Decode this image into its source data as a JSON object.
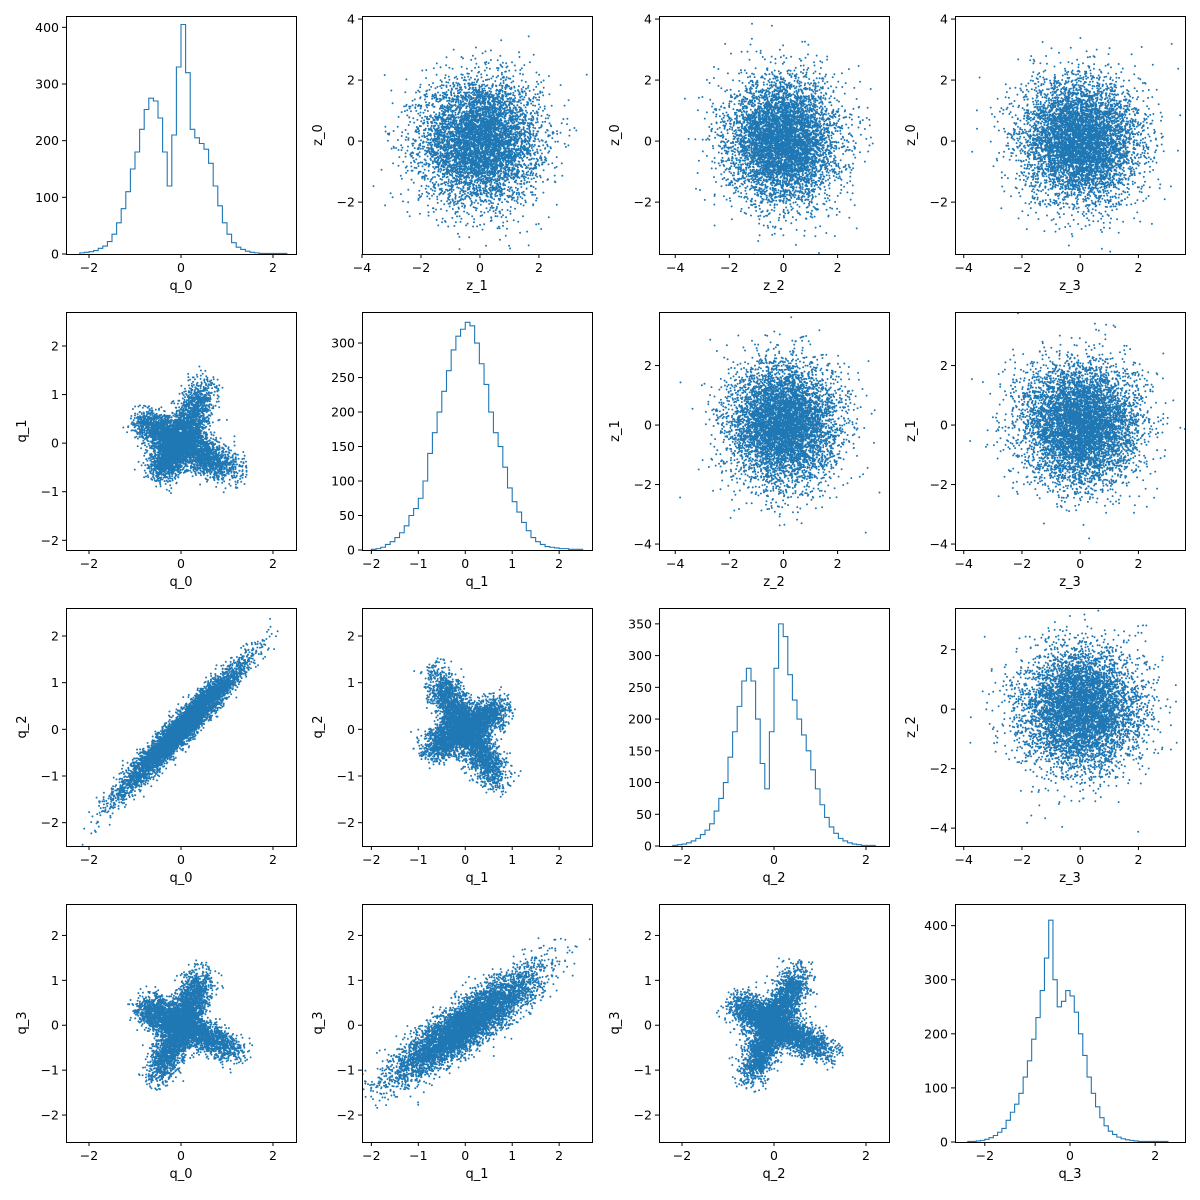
{
  "figure": {
    "rows": 4,
    "cols": 4,
    "color": "#1f77b4"
  },
  "chart_data": [
    {
      "type": "histogram",
      "row": 0,
      "col": 0,
      "xlabel": "q_0",
      "ylabel": "",
      "xlim": [
        -2.5,
        2.5
      ],
      "ylim": [
        0,
        420
      ],
      "xticks": [
        -2,
        0,
        2
      ],
      "yticks": [
        0,
        100,
        200,
        300,
        400
      ],
      "bins": {
        "start": -2.2,
        "width": 0.1
      },
      "counts": [
        2,
        3,
        4,
        6,
        10,
        14,
        22,
        35,
        55,
        80,
        110,
        150,
        180,
        220,
        255,
        275,
        270,
        240,
        180,
        120,
        210,
        330,
        405,
        320,
        220,
        205,
        195,
        185,
        160,
        120,
        85,
        55,
        35,
        20,
        12,
        8,
        5,
        3,
        2,
        1,
        1,
        1,
        1,
        1,
        1
      ]
    },
    {
      "type": "scatter",
      "row": 0,
      "col": 1,
      "xlabel": "z_1",
      "ylabel": "z_0",
      "xlim": [
        -4,
        3.8
      ],
      "ylim": [
        -3.7,
        4.1
      ],
      "xticks": [
        -4,
        -2,
        0,
        2
      ],
      "yticks": [
        -2,
        0,
        2,
        4
      ],
      "distribution": {
        "kind": "gaussian",
        "center": [
          0,
          0
        ],
        "spread": [
          1,
          1
        ],
        "n": 6000
      }
    },
    {
      "type": "scatter",
      "row": 0,
      "col": 2,
      "xlabel": "z_2",
      "ylabel": "z_0",
      "xlim": [
        -4.6,
        3.9
      ],
      "ylim": [
        -3.7,
        4.1
      ],
      "xticks": [
        -4,
        -2,
        0,
        2
      ],
      "yticks": [
        -2,
        0,
        2,
        4
      ],
      "distribution": {
        "kind": "gaussian",
        "center": [
          0,
          0
        ],
        "spread": [
          1,
          1
        ],
        "n": 6000
      }
    },
    {
      "type": "scatter",
      "row": 0,
      "col": 3,
      "xlabel": "z_3",
      "ylabel": "z_0",
      "xlim": [
        -4.3,
        3.6
      ],
      "ylim": [
        -3.7,
        4.1
      ],
      "xticks": [
        -4,
        -2,
        0,
        2
      ],
      "yticks": [
        -2,
        0,
        2,
        4
      ],
      "distribution": {
        "kind": "gaussian",
        "center": [
          0,
          0
        ],
        "spread": [
          1,
          1
        ],
        "n": 6000
      }
    },
    {
      "type": "scatter",
      "row": 1,
      "col": 0,
      "xlabel": "q_0",
      "ylabel": "q_1",
      "xlim": [
        -2.5,
        2.5
      ],
      "ylim": [
        -2.2,
        2.7
      ],
      "xticks": [
        -2,
        0,
        2
      ],
      "yticks": [
        -2,
        -1,
        0,
        1,
        2
      ],
      "distribution": {
        "kind": "arms",
        "arms": [
          [
            0.5,
            1.1,
            0.5,
            0.18
          ],
          [
            1.1,
            -0.55,
            0.5,
            0.17
          ],
          [
            -0.5,
            -0.6,
            0.45,
            0.17
          ],
          [
            -0.85,
            0.45,
            0.4,
            0.17
          ]
        ],
        "n": 6000
      }
    },
    {
      "type": "histogram",
      "row": 1,
      "col": 1,
      "xlabel": "q_1",
      "ylabel": "",
      "xlim": [
        -2.2,
        2.7
      ],
      "ylim": [
        0,
        345
      ],
      "xticks": [
        -2,
        -1,
        0,
        1,
        2
      ],
      "yticks": [
        0,
        50,
        100,
        150,
        200,
        250,
        300
      ],
      "bins": {
        "start": -2.0,
        "width": 0.1
      },
      "counts": [
        1,
        2,
        4,
        8,
        12,
        18,
        25,
        35,
        50,
        60,
        75,
        100,
        140,
        170,
        200,
        230,
        260,
        290,
        310,
        320,
        330,
        325,
        300,
        270,
        240,
        200,
        170,
        150,
        120,
        90,
        70,
        55,
        40,
        28,
        18,
        12,
        8,
        5,
        4,
        3,
        2,
        2,
        1,
        1,
        1
      ]
    },
    {
      "type": "scatter",
      "row": 1,
      "col": 2,
      "xlabel": "z_2",
      "ylabel": "z_1",
      "xlim": [
        -4.6,
        3.9
      ],
      "ylim": [
        -4.2,
        3.8
      ],
      "xticks": [
        -4,
        -2,
        0,
        2
      ],
      "yticks": [
        -4,
        -2,
        0,
        2
      ],
      "distribution": {
        "kind": "gaussian",
        "center": [
          0,
          0
        ],
        "spread": [
          1,
          1
        ],
        "n": 6000
      }
    },
    {
      "type": "scatter",
      "row": 1,
      "col": 3,
      "xlabel": "z_3",
      "ylabel": "z_1",
      "xlim": [
        -4.3,
        3.6
      ],
      "ylim": [
        -4.2,
        3.8
      ],
      "xticks": [
        -4,
        -2,
        0,
        2
      ],
      "yticks": [
        -4,
        -2,
        0,
        2
      ],
      "distribution": {
        "kind": "gaussian",
        "center": [
          0,
          0
        ],
        "spread": [
          1,
          1
        ],
        "n": 6000
      }
    },
    {
      "type": "scatter",
      "row": 2,
      "col": 0,
      "xlabel": "q_0",
      "ylabel": "q_2",
      "xlim": [
        -2.5,
        2.5
      ],
      "ylim": [
        -2.5,
        2.6
      ],
      "xticks": [
        -2,
        0,
        2
      ],
      "yticks": [
        -2,
        -1,
        0,
        1,
        2
      ],
      "distribution": {
        "kind": "linear",
        "slope": 1,
        "center": [
          0,
          0
        ],
        "spread": [
          0.65,
          0.18
        ],
        "n": 6000
      }
    },
    {
      "type": "scatter",
      "row": 2,
      "col": 1,
      "xlabel": "q_1",
      "ylabel": "q_2",
      "xlim": [
        -2.2,
        2.7
      ],
      "ylim": [
        -2.5,
        2.6
      ],
      "xticks": [
        -2,
        -1,
        0,
        1,
        2
      ],
      "yticks": [
        -2,
        -1,
        0,
        1,
        2
      ],
      "distribution": {
        "kind": "arms",
        "arms": [
          [
            -0.6,
            1.1,
            0.45,
            0.17
          ],
          [
            0.75,
            0.45,
            0.5,
            0.16
          ],
          [
            0.65,
            -1.05,
            0.45,
            0.17
          ],
          [
            -0.75,
            -0.45,
            0.5,
            0.16
          ]
        ],
        "n": 6000
      }
    },
    {
      "type": "histogram",
      "row": 2,
      "col": 2,
      "xlabel": "q_2",
      "ylabel": "",
      "xlim": [
        -2.5,
        2.5
      ],
      "ylim": [
        0,
        375
      ],
      "xticks": [
        -2,
        0,
        2
      ],
      "yticks": [
        0,
        50,
        100,
        150,
        200,
        250,
        300,
        350
      ],
      "bins": {
        "start": -2.2,
        "width": 0.1
      },
      "counts": [
        1,
        2,
        3,
        5,
        8,
        12,
        18,
        25,
        35,
        55,
        75,
        100,
        140,
        180,
        220,
        260,
        280,
        260,
        200,
        130,
        90,
        180,
        280,
        350,
        330,
        270,
        230,
        200,
        175,
        150,
        120,
        90,
        65,
        45,
        30,
        20,
        12,
        8,
        5,
        3,
        2,
        1,
        1,
        1
      ]
    },
    {
      "type": "scatter",
      "row": 2,
      "col": 3,
      "xlabel": "z_3",
      "ylabel": "z_2",
      "xlim": [
        -4.3,
        3.6
      ],
      "ylim": [
        -4.6,
        3.4
      ],
      "xticks": [
        -4,
        -2,
        0,
        2
      ],
      "yticks": [
        -4,
        -2,
        0,
        2
      ],
      "distribution": {
        "kind": "gaussian",
        "center": [
          0,
          0
        ],
        "spread": [
          1,
          1
        ],
        "n": 6000
      }
    },
    {
      "type": "scatter",
      "row": 3,
      "col": 0,
      "xlabel": "q_0",
      "ylabel": "q_3",
      "xlim": [
        -2.5,
        2.5
      ],
      "ylim": [
        -2.6,
        2.7
      ],
      "xticks": [
        -2,
        0,
        2
      ],
      "yticks": [
        -2,
        -1,
        0,
        1,
        2
      ],
      "distribution": {
        "kind": "arms",
        "arms": [
          [
            0.45,
            1.05,
            0.45,
            0.17
          ],
          [
            1.15,
            -0.55,
            0.45,
            0.16
          ],
          [
            -0.5,
            -1.1,
            0.45,
            0.16
          ],
          [
            -0.8,
            0.4,
            0.45,
            0.18
          ]
        ],
        "n": 6000
      }
    },
    {
      "type": "scatter",
      "row": 3,
      "col": 1,
      "xlabel": "q_1",
      "ylabel": "q_3",
      "xlim": [
        -2.2,
        2.7
      ],
      "ylim": [
        -2.6,
        2.7
      ],
      "xticks": [
        -2,
        -1,
        0,
        1,
        2
      ],
      "yticks": [
        -2,
        -1,
        0,
        1,
        2
      ],
      "distribution": {
        "kind": "linear",
        "slope": 0.7,
        "center": [
          0,
          0
        ],
        "spread": [
          0.75,
          0.28
        ],
        "n": 6000
      }
    },
    {
      "type": "scatter",
      "row": 3,
      "col": 2,
      "xlabel": "q_2",
      "ylabel": "q_3",
      "xlim": [
        -2.5,
        2.5
      ],
      "ylim": [
        -2.6,
        2.7
      ],
      "xticks": [
        -2,
        0,
        2
      ],
      "yticks": [
        -2,
        -1,
        0,
        1,
        2
      ],
      "distribution": {
        "kind": "arms",
        "arms": [
          [
            0.5,
            1.1,
            0.45,
            0.17
          ],
          [
            1.1,
            -0.55,
            0.5,
            0.16
          ],
          [
            -0.5,
            -1.1,
            0.4,
            0.16
          ],
          [
            -0.8,
            0.45,
            0.45,
            0.18
          ]
        ],
        "n": 6000
      }
    },
    {
      "type": "histogram",
      "row": 3,
      "col": 3,
      "xlabel": "q_3",
      "ylabel": "",
      "xlim": [
        -2.7,
        2.7
      ],
      "ylim": [
        0,
        440
      ],
      "xticks": [
        -2,
        0,
        2
      ],
      "yticks": [
        0,
        100,
        200,
        300,
        400
      ],
      "bins": {
        "start": -2.4,
        "width": 0.1
      },
      "counts": [
        1,
        1,
        2,
        3,
        5,
        8,
        12,
        18,
        25,
        40,
        55,
        70,
        90,
        120,
        150,
        190,
        230,
        280,
        340,
        410,
        300,
        250,
        260,
        280,
        270,
        240,
        200,
        160,
        120,
        90,
        65,
        45,
        30,
        20,
        14,
        9,
        6,
        4,
        3,
        2,
        1,
        1,
        1,
        1,
        1,
        1,
        1
      ]
    }
  ]
}
